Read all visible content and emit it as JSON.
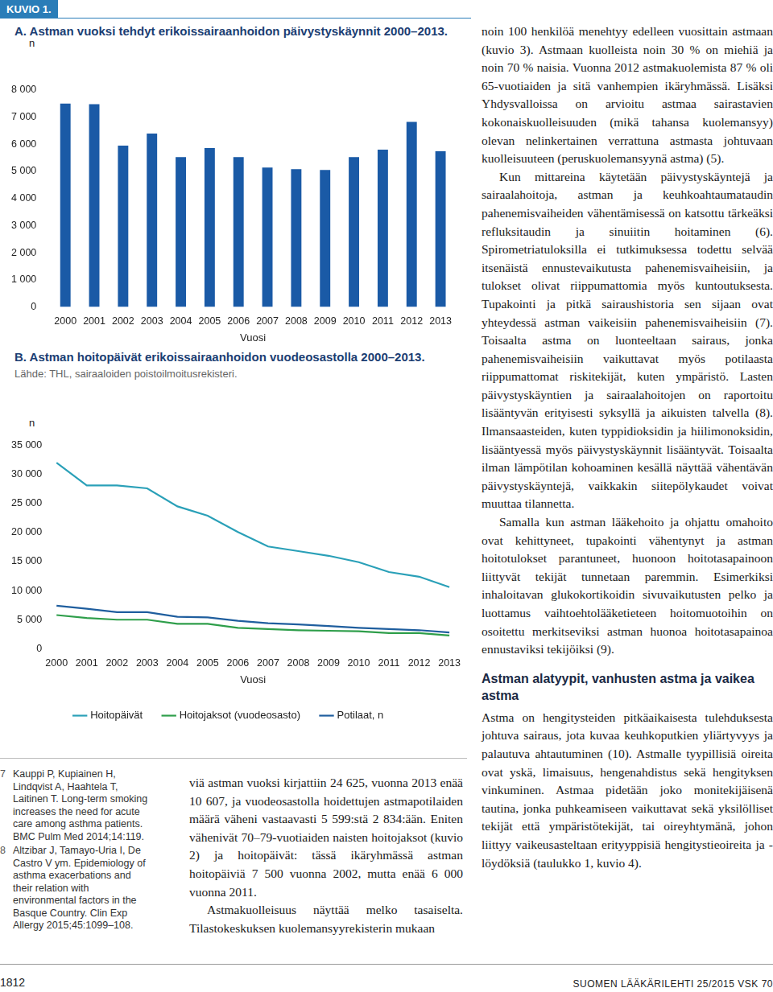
{
  "header": {
    "label": "KUVIO 1."
  },
  "chart_data": [
    {
      "type": "bar",
      "title": "A. Astman vuoksi tehdyt erikoissairaanhoidon päivystyskäynnit 2000–2013.",
      "y_label": "n",
      "x_label": "Vuosi",
      "categories": [
        "2000",
        "2001",
        "2002",
        "2003",
        "2004",
        "2005",
        "2006",
        "2007",
        "2008",
        "2009",
        "2010",
        "2011",
        "2012",
        "2013"
      ],
      "values": [
        7500,
        7480,
        5950,
        6400,
        5530,
        5860,
        5530,
        5140,
        5080,
        5050,
        5530,
        5800,
        6830,
        5740
      ],
      "color": "#1a5aa6",
      "ylim": [
        0,
        8000
      ],
      "yticks": [
        0,
        {
          "value": 1000,
          "label": "1 000"
        },
        {
          "value": 2000,
          "label": "2 000"
        },
        {
          "value": 3000,
          "label": "3 000"
        },
        {
          "value": 4000,
          "label": "4 000"
        },
        {
          "value": 5000,
          "label": "5 000"
        },
        {
          "value": 6000,
          "label": "6 000"
        },
        {
          "value": 7000,
          "label": "7 000"
        },
        {
          "value": 8000,
          "label": "8 000"
        }
      ],
      "grid": false
    },
    {
      "type": "line",
      "title": "B. Astman hoitopäivät erikoissairaanhoidon vuodeosastolla 2000–2013.",
      "subtitle": "Lähde: THL, sairaaloiden poistoilmoitusrekisteri.",
      "y_label": "n",
      "x_label": "Vuosi",
      "categories": [
        "2000",
        "2001",
        "2002",
        "2003",
        "2004",
        "2005",
        "2006",
        "2007",
        "2008",
        "2009",
        "2010",
        "2011",
        "2012",
        "2013"
      ],
      "series": [
        {
          "name": "Hoitopäivät",
          "color": "#2aa0b8",
          "values": [
            32000,
            28100,
            28100,
            27600,
            24500,
            22900,
            20100,
            17600,
            16800,
            16000,
            14900,
            13200,
            12400,
            10600
          ]
        },
        {
          "name": "Hoitojaksot (vuodeosasto)",
          "color": "#2e9e4a",
          "values": [
            5800,
            5300,
            5000,
            5000,
            4300,
            4300,
            3600,
            3400,
            3200,
            3100,
            3000,
            2700,
            2700,
            2300
          ]
        },
        {
          "name": "Potilaat, n",
          "color": "#1f5e9e",
          "values": [
            7400,
            6900,
            6300,
            6300,
            5500,
            5400,
            4800,
            4400,
            4200,
            3900,
            3600,
            3400,
            3200,
            2800
          ]
        }
      ],
      "ylim": [
        0,
        35000
      ],
      "yticks": [
        0,
        {
          "value": 5000,
          "label": "5 000"
        },
        {
          "value": 10000,
          "label": "10 000"
        },
        {
          "value": 15000,
          "label": "15 000"
        },
        {
          "value": 20000,
          "label": "20 000"
        },
        {
          "value": 25000,
          "label": "25 000"
        },
        {
          "value": 30000,
          "label": "30 000"
        },
        {
          "value": 35000,
          "label": "35 000"
        }
      ],
      "grid": false,
      "legend": "bottom"
    }
  ],
  "right_column": {
    "paragraphs": [
      "noin 100 henkilöä menehtyy edelleen vuosittain astmaan (kuvio 3). Astmaan kuolleista noin 30 % on miehiä ja noin 70 % naisia. Vuonna 2012 astmakuolemista 87 % oli 65-vuotiaiden ja sitä vanhempien ikäryhmässä. Lisäksi Yhdysvalloissa on arvioitu astmaa sairastavien kokonaiskuolleisuuden (mikä tahansa kuolemansyy) olevan nelinkertainen verrattuna astmasta johtuvaan kuolleisuuteen (peruskuolemansyynä astma) (5).",
      "Kun mittareina käytetään päivystyskäyntejä ja sairaalahoitoja, astman ja keuhkoahtaumataudin pahenemisvaiheiden vähentämisessä on katsottu tärkeäksi refluksitaudin ja sinuiitin hoitaminen (6). Spirometriatuloksilla ei tutkimuksessa todettu selvää itsenäistä ennustevaikutusta pahenemisvaiheisiin, ja tulokset olivat riippumattomia myös kuntoutuksesta. Tupakointi ja pitkä sairaushistoria sen sijaan ovat yhteydessä astman vaikeisiin pahenemisvaiheisiin (7). Toisaalta astma on luonteeltaan sairaus, jonka pahenemisvaiheisiin vaikuttavat myös potilaasta riippumattomat riskitekijät, kuten ympäristö. Lasten päivystyskäyntien ja sairaalahoitojen on raportoitu lisääntyvän erityisesti syksyllä ja aikuisten talvella (8). Ilmansaasteiden, kuten typpidioksidin ja hiilimonoksidin, lisääntyessä myös päivystyskäynnit lisääntyvät. Toisaalta ilman lämpötilan kohoaminen kesällä näyttää vähentävän päivystyskäyntejä, vaikkakin siitepölykaudet voivat muuttaa tilannetta.",
      "Samalla kun astman lääkehoito ja ohjattu omahoito ovat kehittyneet, tupakointi vähentynyt ja astman hoitotulokset parantuneet, huonoon hoitotasapainoon liittyvät tekijät tunnetaan paremmin. Esimerkiksi inhaloitavan glukokortikoidin sivuvaikutusten pelko ja luottamus vaihtoehtolääketieteen hoitomuotoihin on osoitettu merkitseviksi astman huonoa hoitotasapainoa ennustaviksi tekijöiksi (9)."
    ],
    "section": {
      "heading": "Astman alatyypit, vanhusten astma ja vaikea astma",
      "paragraphs": [
        "Astma on hengitysteiden pitkäaikaisesta tulehduksesta johtuva sairaus, jota kuvaa keuhkoputkien yliärtyvyys ja palautuva ahtautuminen (10). Astmalle tyypillisiä oireita ovat yskä, limaisuus, hengenahdistus sekä hengityksen vinkuminen. Astmaa pidetään joko monitekijäisenä tautina, jonka puhkeamiseen vaikuttavat sekä yksilölliset tekijät että ympäristötekijät, tai oireyhtymänä, johon liittyy vaikeusasteltaan erityyppisiä hengitystieoireita ja -löydöksiä (taulukko 1, kuvio 4)."
      ]
    }
  },
  "middle_column": {
    "paragraphs": [
      "viä astman vuoksi kirjattiin 24 625, vuonna 2013 enää 10 607, ja vuodeosastolla hoidettujen astmapotilaiden määrä väheni vastaavasti 5 599:stä 2 834:ään. Eniten vähenivät 70–79-vuotiaiden naisten hoitojaksot (kuvio 2) ja hoitopäivät: tässä ikäryhmässä astman hoitopäiviä 7 500 vuonna 2002, mutta enää 6 000 vuonna 2011.",
      "Astmakuolleisuus näyttää melko tasaiselta. Tilastokeskuksen kuolemansyyrekisterin mukaan"
    ]
  },
  "references": [
    {
      "number": "7",
      "text": "Kauppi P, Kupiainen H, Lindqvist A, Haahtela T, Laitinen T. Long-term smoking increases the need for acute care among asthma patients. BMC Pulm Med 2014;14:119."
    },
    {
      "number": "8",
      "text": "Altzibar J, Tamayo-Uria I, De Castro V ym. Epidemiology of asthma exacerbations and their relation with environmental factors in the Basque Country. Clin Exp Allergy 2015;45:1099–108."
    }
  ],
  "footer": {
    "page": "1812",
    "journal": "SUOMEN LÄÄKÄRILEHTI 25/2015 VSK 70"
  }
}
